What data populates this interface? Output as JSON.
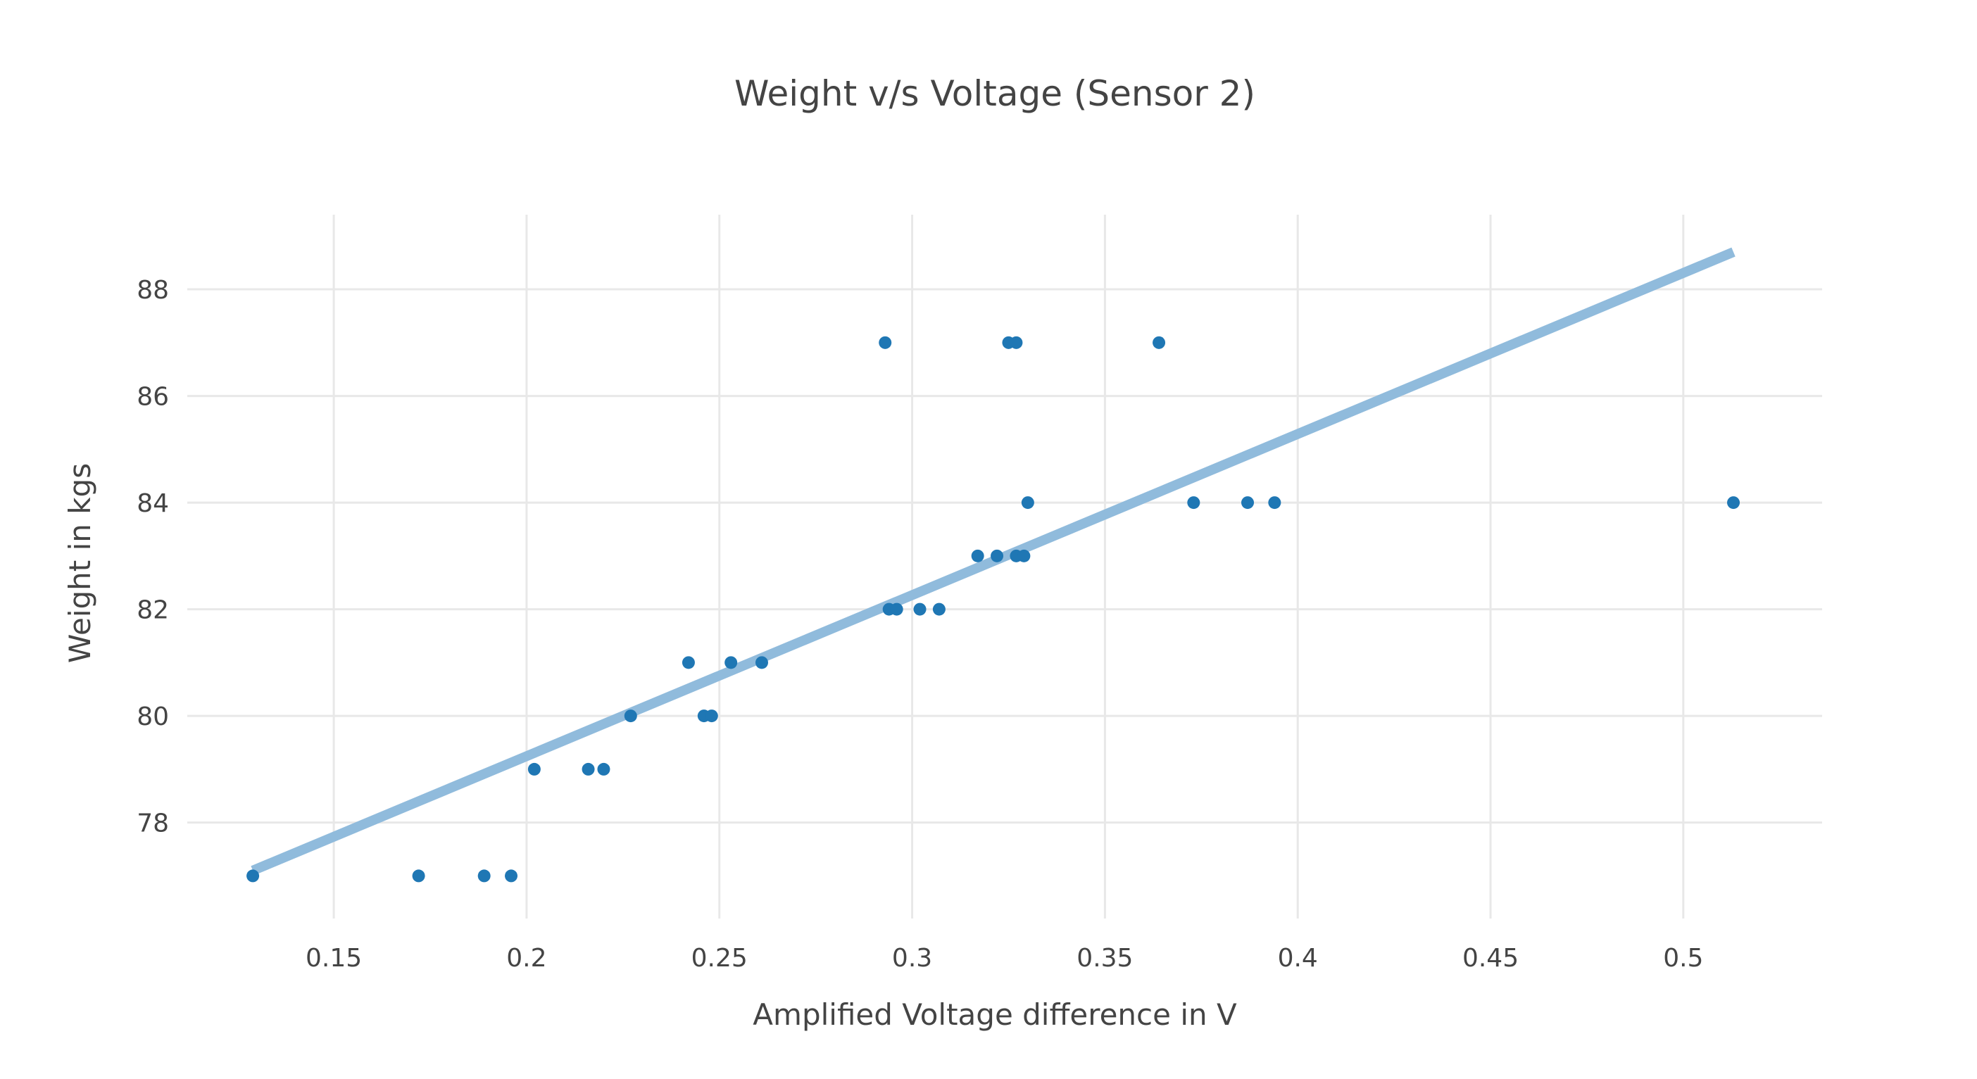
{
  "chart_data": {
    "type": "scatter",
    "title": "Weight v/s Voltage (Sensor 2)",
    "xlabel": "Amplified Voltage difference in V",
    "ylabel": "Weight in kgs",
    "xlim": [
      0.112,
      0.536
    ],
    "ylim": [
      76.2,
      89.4
    ],
    "xticks": [
      0.15,
      0.2,
      0.25,
      0.3,
      0.35,
      0.4,
      0.45,
      0.5
    ],
    "xtick_labels": [
      "0.15",
      "0.2",
      "0.25",
      "0.3",
      "0.35",
      "0.4",
      "0.45",
      "0.5"
    ],
    "yticks": [
      78,
      80,
      82,
      84,
      86,
      88
    ],
    "ytick_labels": [
      "78",
      "80",
      "82",
      "84",
      "86",
      "88"
    ],
    "grid": true,
    "colors": {
      "points": "#1f77b4",
      "fit_line": "#90bbdc",
      "grid": "#e8e8e8",
      "text": "#444444"
    },
    "series": [
      {
        "type": "scatter",
        "x": [
          0.129,
          0.172,
          0.189,
          0.196,
          0.202,
          0.216,
          0.22,
          0.227,
          0.242,
          0.246,
          0.248,
          0.253,
          0.261,
          0.293,
          0.294,
          0.296,
          0.302,
          0.307,
          0.317,
          0.322,
          0.325,
          0.327,
          0.327,
          0.329,
          0.33,
          0.364,
          0.373,
          0.387,
          0.394,
          0.513
        ],
        "y": [
          77,
          77,
          77,
          77,
          79,
          79,
          79,
          80,
          81,
          80,
          80,
          81,
          81,
          87,
          82,
          82,
          82,
          82,
          83,
          83,
          87,
          87,
          83,
          83,
          84,
          87,
          84,
          84,
          84,
          84
        ]
      },
      {
        "type": "line",
        "x": [
          0.129,
          0.513
        ],
        "y": [
          77.1,
          88.7
        ]
      }
    ]
  }
}
